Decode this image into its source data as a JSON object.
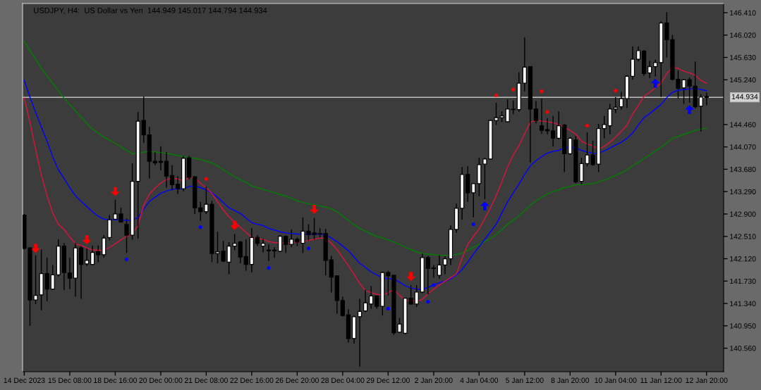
{
  "chart_data": {
    "type": "candlestick",
    "title": "USDJPY, H4:  US Dollar vs Yen  144.949 145.017 144.794 144.934",
    "categories": [
      "14 Dec 2023",
      null,
      null,
      null,
      null,
      null,
      null,
      null,
      "15 Dec 08:00",
      null,
      null,
      null,
      null,
      null,
      null,
      null,
      "18 Dec 16:00",
      null,
      null,
      null,
      null,
      null,
      null,
      null,
      "20 Dec 00:00",
      null,
      null,
      null,
      null,
      null,
      null,
      null,
      "21 Dec 08:00",
      null,
      null,
      null,
      null,
      null,
      null,
      null,
      "22 Dec 16:00",
      null,
      null,
      null,
      null,
      null,
      null,
      null,
      "26 Dec 20:00",
      null,
      null,
      null,
      null,
      null,
      null,
      null,
      "28 Dec 04:00",
      null,
      null,
      null,
      null,
      null,
      null,
      null,
      "29 Dec 12:00",
      null,
      null,
      null,
      null,
      null,
      null,
      null,
      "2 Jan 20:00",
      null,
      null,
      null,
      null,
      null,
      null,
      null,
      "4 Jan 04:00",
      null,
      null,
      null,
      null,
      null,
      null,
      null,
      "5 Jan 12:00",
      null,
      null,
      null,
      null,
      null,
      null,
      null,
      "8 Jan 20:00",
      null,
      null,
      null,
      null,
      null,
      null,
      null,
      "10 Jan 04:00",
      null,
      null,
      null,
      null,
      null,
      null,
      null,
      "11 Jan 12:00",
      null,
      null,
      null,
      null,
      null,
      null,
      null,
      "12 Jan 20:00"
    ],
    "ohlc": [
      [
        142.88,
        142.9,
        142.28,
        142.3
      ],
      [
        142.31,
        142.32,
        140.95,
        141.4
      ],
      [
        141.4,
        142.18,
        141.33,
        141.48
      ],
      [
        141.49,
        142.28,
        141.22,
        141.86
      ],
      [
        141.86,
        142.14,
        141.38,
        141.59
      ],
      [
        141.59,
        142.01,
        141.58,
        141.84
      ],
      [
        141.84,
        142.46,
        141.81,
        142.34
      ],
      [
        142.34,
        142.39,
        141.57,
        141.88
      ],
      [
        141.87,
        142.14,
        141.59,
        141.78
      ],
      [
        141.78,
        142.39,
        141.46,
        142.31
      ],
      [
        142.31,
        142.34,
        141.42,
        142.02
      ],
      [
        142.03,
        142.3,
        141.99,
        142.09
      ],
      [
        142.02,
        142.35,
        142.01,
        142.23
      ],
      [
        142.24,
        142.35,
        142.06,
        142.19
      ],
      [
        142.19,
        142.53,
        142.14,
        142.48
      ],
      [
        142.49,
        142.88,
        142.44,
        142.8
      ],
      [
        142.81,
        143.15,
        142.8,
        142.9
      ],
      [
        142.9,
        143.01,
        142.75,
        142.76
      ],
      [
        142.72,
        142.82,
        142.22,
        142.53
      ],
      [
        142.53,
        143.78,
        142.45,
        143.47
      ],
      [
        143.47,
        144.68,
        142.47,
        144.52
      ],
      [
        144.53,
        144.95,
        144.14,
        144.28
      ],
      [
        144.28,
        144.42,
        143.52,
        143.82
      ],
      [
        143.82,
        143.98,
        143.75,
        143.79
      ],
      [
        143.82,
        144.08,
        143.66,
        143.8
      ],
      [
        143.82,
        143.98,
        143.36,
        143.56
      ],
      [
        143.57,
        143.75,
        143.31,
        143.41
      ],
      [
        143.42,
        143.56,
        143.25,
        143.34
      ],
      [
        143.34,
        143.91,
        143.3,
        143.87
      ],
      [
        143.88,
        143.91,
        143.5,
        143.54
      ],
      [
        143.55,
        143.56,
        142.9,
        143.01
      ],
      [
        143.01,
        143.11,
        142.78,
        142.94
      ],
      [
        142.94,
        143.38,
        142.9,
        143.07
      ],
      [
        143.07,
        143.13,
        142.06,
        142.21
      ],
      [
        142.21,
        142.59,
        142.04,
        142.24
      ],
      [
        142.25,
        142.43,
        142.06,
        142.08
      ],
      [
        142.06,
        142.41,
        141.85,
        142.34
      ],
      [
        142.34,
        142.55,
        142.27,
        142.39
      ],
      [
        142.41,
        142.43,
        142.04,
        142.15
      ],
      [
        142.16,
        142.46,
        141.91,
        142.02
      ],
      [
        142.02,
        142.65,
        141.88,
        142.49
      ],
      [
        142.49,
        142.53,
        142.34,
        142.39
      ],
      [
        142.34,
        142.47,
        142.23,
        142.39
      ],
      [
        142.27,
        142.37,
        142.08,
        142.26
      ],
      [
        142.27,
        142.32,
        142.14,
        142.26
      ],
      [
        142.25,
        142.53,
        142.24,
        142.51
      ],
      [
        142.51,
        142.53,
        142.22,
        142.37
      ],
      [
        142.37,
        142.63,
        142.32,
        142.46
      ],
      [
        142.46,
        142.49,
        142.34,
        142.41
      ],
      [
        142.39,
        142.84,
        142.22,
        142.6
      ],
      [
        142.6,
        142.72,
        142.43,
        142.54
      ],
      [
        142.57,
        142.83,
        142.45,
        142.54
      ],
      [
        142.56,
        142.65,
        142.49,
        142.55
      ],
      [
        142.56,
        142.64,
        141.83,
        142.09
      ],
      [
        142.1,
        142.17,
        141.53,
        141.8
      ],
      [
        141.82,
        141.83,
        141.16,
        141.39
      ],
      [
        141.39,
        141.46,
        141.11,
        141.13
      ],
      [
        141.14,
        141.24,
        140.66,
        140.73
      ],
      [
        140.73,
        141.13,
        140.64,
        141.11
      ],
      [
        141.11,
        141.42,
        140.24,
        141.2
      ],
      [
        141.21,
        141.58,
        141.19,
        141.35
      ],
      [
        141.33,
        141.64,
        141.25,
        141.47
      ],
      [
        141.47,
        141.48,
        141.25,
        141.29
      ],
      [
        141.29,
        141.9,
        141.13,
        141.88
      ],
      [
        141.88,
        141.91,
        141.48,
        141.82
      ],
      [
        141.83,
        141.84,
        140.79,
        140.83
      ],
      [
        140.84,
        141.09,
        140.83,
        140.98
      ],
      [
        140.82,
        141.44,
        140.8,
        141.43
      ],
      [
        141.43,
        141.66,
        141.32,
        141.33
      ],
      [
        141.33,
        141.66,
        141.28,
        141.54
      ],
      [
        141.54,
        142.21,
        141.52,
        142.14
      ],
      [
        142.14,
        142.17,
        141.5,
        141.95
      ],
      [
        141.96,
        142.01,
        141.79,
        141.95
      ],
      [
        141.83,
        142.18,
        141.77,
        142.01
      ],
      [
        142.01,
        142.16,
        141.85,
        142.12
      ],
      [
        142.12,
        142.7,
        142.01,
        142.63
      ],
      [
        142.63,
        143.08,
        142.57,
        143.0
      ],
      [
        143.0,
        143.72,
        142.8,
        143.59
      ],
      [
        143.59,
        143.73,
        143.11,
        143.27
      ],
      [
        143.27,
        143.44,
        142.84,
        143.43
      ],
      [
        143.43,
        143.88,
        143.21,
        143.76
      ],
      [
        143.77,
        143.88,
        143.16,
        143.86
      ],
      [
        143.86,
        144.54,
        143.85,
        144.53
      ],
      [
        144.53,
        144.84,
        144.45,
        144.58
      ],
      [
        144.58,
        144.69,
        144.5,
        144.61
      ],
      [
        144.51,
        144.9,
        144.5,
        144.73
      ],
      [
        144.72,
        144.88,
        144.64,
        144.73
      ],
      [
        144.72,
        145.37,
        144.68,
        145.18
      ],
      [
        145.18,
        145.98,
        145.04,
        145.46
      ],
      [
        145.47,
        145.48,
        143.8,
        144.73
      ],
      [
        144.73,
        144.87,
        144.48,
        144.53
      ],
      [
        144.44,
        144.91,
        144.3,
        144.36
      ],
      [
        144.37,
        144.57,
        144.29,
        144.35
      ],
      [
        144.35,
        144.61,
        144.08,
        144.22
      ],
      [
        144.22,
        144.69,
        144.2,
        144.44
      ],
      [
        144.45,
        144.47,
        143.63,
        143.95
      ],
      [
        143.95,
        144.24,
        143.93,
        144.22
      ],
      [
        144.19,
        144.26,
        143.43,
        143.46
      ],
      [
        143.47,
        143.88,
        143.42,
        143.78
      ],
      [
        143.78,
        144.32,
        143.73,
        143.93
      ],
      [
        143.93,
        144.18,
        143.74,
        143.76
      ],
      [
        143.77,
        144.47,
        143.63,
        144.39
      ],
      [
        144.39,
        144.61,
        144.22,
        144.46
      ],
      [
        144.44,
        144.82,
        144.29,
        144.73
      ],
      [
        144.73,
        144.94,
        144.66,
        144.76
      ],
      [
        144.77,
        145.03,
        144.72,
        144.91
      ],
      [
        144.91,
        145.32,
        144.75,
        145.3
      ],
      [
        145.3,
        145.82,
        145.24,
        145.6
      ],
      [
        145.6,
        145.82,
        145.56,
        145.75
      ],
      [
        145.74,
        145.76,
        145.31,
        145.35
      ],
      [
        145.36,
        145.57,
        145.27,
        145.47
      ],
      [
        145.47,
        145.59,
        145.3,
        145.54
      ],
      [
        145.54,
        146.26,
        144.94,
        146.23
      ],
      [
        146.23,
        146.42,
        145.63,
        145.94
      ],
      [
        145.94,
        146.02,
        145.23,
        145.25
      ],
      [
        145.25,
        145.4,
        144.91,
        145.09
      ],
      [
        145.1,
        145.25,
        144.82,
        145.24
      ],
      [
        145.24,
        145.28,
        144.84,
        145.13
      ],
      [
        145.13,
        145.56,
        144.74,
        144.77
      ],
      [
        144.78,
        144.99,
        144.34,
        144.94
      ],
      [
        144.949,
        145.017,
        144.794,
        144.934
      ]
    ],
    "colors": [
      "#000000",
      "#000000",
      "#ffffff",
      "#ffffff",
      "#000000",
      "#ffffff",
      "#ffffff",
      "#000000",
      "#000000",
      "#ffffff",
      "#000000",
      "#ffffff",
      "#ffffff",
      "#000000",
      "#ffffff",
      "#ffffff",
      "#ffffff",
      "#000000",
      "#000000",
      "#ffffff",
      "#ffffff",
      "#000000",
      "#000000",
      "#000000",
      "#000000",
      "#000000",
      "#000000",
      "#000000",
      "#ffffff",
      "#000000",
      "#000000",
      "#000000",
      "#ffffff",
      "#000000",
      "#ffffff",
      "#000000",
      "#ffffff",
      "#ffffff",
      "#000000",
      "#000000",
      "#ffffff",
      "#000000",
      "#ffffff",
      "#000000",
      "#000000",
      "#ffffff",
      "#000000",
      "#ffffff",
      "#000000",
      "#ffffff",
      "#000000",
      "#000000",
      "#000000",
      "#000000",
      "#000000",
      "#000000",
      "#000000",
      "#000000",
      "#ffffff",
      "#ffffff",
      "#ffffff",
      "#ffffff",
      "#000000",
      "#ffffff",
      "#000000",
      "#000000",
      "#ffffff",
      "#ffffff",
      "#000000",
      "#ffffff",
      "#ffffff",
      "#000000",
      "#000000",
      "#ffffff",
      "#ffffff",
      "#ffffff",
      "#ffffff",
      "#ffffff",
      "#000000",
      "#ffffff",
      "#ffffff",
      "#ffffff",
      "#ffffff",
      "#ffffff",
      "#ffffff",
      "#ffffff",
      "#ffffff",
      "#ffffff",
      "#ffffff",
      "#000000",
      "#000000",
      "#000000",
      "#000000",
      "#000000",
      "#ffffff",
      "#000000",
      "#ffffff",
      "#000000",
      "#ffffff",
      "#ffffff",
      "#000000",
      "#ffffff",
      "#ffffff",
      "#ffffff",
      "#ffffff",
      "#ffffff",
      "#ffffff",
      "#ffffff",
      "#ffffff",
      "#000000",
      "#ffffff",
      "#ffffff",
      "#ffffff",
      "#000000",
      "#000000",
      "#000000",
      "#ffffff",
      "#000000",
      "#000000",
      "#ffffff",
      "#000000"
    ],
    "series": [
      {
        "type": "line",
        "color": "#008000",
        "values": [
          145.91,
          145.75,
          145.6,
          145.44,
          145.31,
          145.18,
          145.05,
          144.92,
          144.81,
          144.7,
          144.59,
          144.48,
          144.38,
          144.31,
          144.24,
          144.19,
          144.13,
          144.07,
          144.01,
          143.95,
          143.96,
          143.98,
          143.99,
          143.98,
          143.97,
          143.96,
          143.94,
          143.92,
          143.9,
          143.89,
          143.87,
          143.85,
          143.82,
          143.79,
          143.74,
          143.67,
          143.61,
          143.55,
          143.5,
          143.45,
          143.39,
          143.36,
          143.33,
          143.3,
          143.27,
          143.24,
          143.21,
          143.17,
          143.13,
          143.1,
          143.08,
          143.06,
          143.04,
          143.02,
          142.99,
          142.94,
          142.86,
          142.79,
          142.71,
          142.65,
          142.6,
          142.55,
          142.51,
          142.48,
          142.45,
          142.41,
          142.37,
          142.32,
          142.28,
          142.24,
          142.21,
          142.2,
          142.19,
          142.18,
          142.18,
          142.18,
          142.19,
          142.22,
          142.27,
          142.32,
          142.37,
          142.42,
          142.47,
          142.54,
          142.63,
          142.72,
          142.79,
          142.87,
          142.96,
          143.05,
          143.13,
          143.19,
          143.25,
          143.29,
          143.32,
          143.36,
          143.38,
          143.41,
          143.41,
          143.42,
          143.43,
          143.46,
          143.49,
          143.53,
          143.57,
          143.62,
          143.67,
          143.74,
          143.8,
          143.87,
          143.93,
          144.0,
          144.06,
          144.14,
          144.22,
          144.25,
          144.29,
          144.32,
          144.36,
          144.38,
          144.4
        ]
      },
      {
        "type": "line",
        "color": "#0000ff",
        "values": [
          145.23,
          144.94,
          144.67,
          144.42,
          144.17,
          143.9,
          143.67,
          143.52,
          143.36,
          143.22,
          143.12,
          143.03,
          142.94,
          142.86,
          142.81,
          142.8,
          142.8,
          142.8,
          142.79,
          142.79,
          142.84,
          142.98,
          143.12,
          143.19,
          143.26,
          143.3,
          143.33,
          143.34,
          143.34,
          143.38,
          143.39,
          143.36,
          143.32,
          143.27,
          143.19,
          143.1,
          143.01,
          142.96,
          142.91,
          142.83,
          142.75,
          142.72,
          142.7,
          142.65,
          142.62,
          142.59,
          142.57,
          142.56,
          142.55,
          142.55,
          142.55,
          142.55,
          142.55,
          142.54,
          142.48,
          142.42,
          142.34,
          142.26,
          142.15,
          142.04,
          141.97,
          141.89,
          141.84,
          141.79,
          141.77,
          141.77,
          141.71,
          141.65,
          141.61,
          141.59,
          141.58,
          141.62,
          141.66,
          141.7,
          141.73,
          141.77,
          141.84,
          141.93,
          142.06,
          142.2,
          142.33,
          142.46,
          142.59,
          142.72,
          142.92,
          143.11,
          143.27,
          143.42,
          143.59,
          143.74,
          143.83,
          143.9,
          143.96,
          143.99,
          144.01,
          144.06,
          144.06,
          144.06,
          144.01,
          143.98,
          143.96,
          143.96,
          144.0,
          144.05,
          144.1,
          144.15,
          144.22,
          144.31,
          144.45,
          144.58,
          144.65,
          144.73,
          144.81,
          144.93,
          145.02,
          145.06,
          145.07,
          145.08,
          145.09,
          145.07,
          145.05
        ]
      },
      {
        "type": "line",
        "color": "#dc143c",
        "values": [
          144.92,
          144.5,
          144.02,
          143.58,
          143.22,
          142.92,
          142.72,
          142.63,
          142.5,
          142.38,
          142.35,
          142.31,
          142.27,
          142.27,
          142.26,
          142.32,
          142.38,
          142.45,
          142.51,
          142.55,
          142.7,
          143.05,
          143.25,
          143.35,
          143.44,
          143.5,
          143.52,
          143.51,
          143.47,
          143.54,
          143.54,
          143.43,
          143.36,
          143.26,
          143.11,
          142.97,
          142.85,
          142.76,
          142.67,
          142.58,
          142.49,
          142.47,
          142.46,
          142.42,
          142.4,
          142.4,
          142.39,
          142.4,
          142.41,
          142.42,
          142.44,
          142.46,
          142.48,
          142.48,
          142.39,
          142.28,
          142.14,
          142.0,
          141.85,
          141.69,
          141.56,
          141.53,
          141.5,
          141.48,
          141.53,
          141.59,
          141.48,
          141.4,
          141.38,
          141.38,
          141.41,
          141.51,
          141.59,
          141.66,
          141.73,
          141.79,
          141.85,
          142.13,
          142.37,
          142.51,
          142.64,
          142.82,
          143.01,
          143.22,
          143.46,
          143.72,
          143.93,
          144.09,
          144.3,
          144.5,
          144.53,
          144.52,
          144.51,
          144.49,
          144.46,
          144.41,
          144.36,
          144.29,
          144.17,
          144.12,
          144.09,
          144.02,
          144.08,
          144.15,
          144.24,
          144.34,
          144.45,
          144.64,
          144.79,
          144.95,
          145.02,
          145.1,
          145.18,
          145.35,
          145.46,
          145.44,
          145.39,
          145.36,
          145.32,
          145.23,
          145.18
        ]
      },
      {
        "type": "scatter",
        "marker": "triangle_down",
        "color": "#ff0000",
        "values": [
          null,
          null,
          142.3,
          null,
          null,
          null,
          null,
          null,
          null,
          null,
          null,
          142.45,
          null,
          null,
          null,
          null,
          143.29,
          null,
          null,
          null,
          null,
          null,
          null,
          null,
          null,
          null,
          null,
          null,
          null,
          null,
          null,
          null,
          null,
          null,
          null,
          null,
          null,
          142.7,
          null,
          null,
          null,
          null,
          null,
          null,
          null,
          null,
          null,
          null,
          null,
          null,
          null,
          142.98,
          null,
          null,
          null,
          null,
          null,
          null,
          null,
          null,
          null,
          null,
          null,
          null,
          null,
          null,
          null,
          null,
          141.81,
          null,
          null,
          null,
          null,
          null,
          null,
          null,
          null,
          null,
          null,
          null,
          null,
          null,
          null,
          null,
          null,
          null,
          null,
          null,
          null,
          null,
          null,
          null,
          null,
          null,
          null,
          null,
          null,
          null,
          null,
          null,
          null,
          null,
          null,
          null,
          null,
          null,
          null,
          null,
          null,
          null,
          null,
          null,
          null,
          null,
          null,
          null,
          null,
          null,
          null,
          null,
          null
        ]
      },
      {
        "type": "scatter",
        "marker": "triangle",
        "color": "#0000ff",
        "values": [
          null,
          null,
          null,
          null,
          null,
          null,
          null,
          null,
          null,
          null,
          null,
          null,
          null,
          null,
          null,
          null,
          null,
          null,
          null,
          null,
          null,
          null,
          null,
          null,
          null,
          null,
          null,
          null,
          null,
          null,
          null,
          null,
          null,
          null,
          null,
          null,
          null,
          null,
          null,
          null,
          null,
          null,
          null,
          null,
          null,
          null,
          null,
          null,
          null,
          null,
          null,
          null,
          null,
          null,
          null,
          null,
          null,
          null,
          null,
          null,
          null,
          null,
          null,
          null,
          null,
          null,
          null,
          null,
          null,
          null,
          null,
          null,
          null,
          null,
          null,
          null,
          null,
          null,
          null,
          null,
          null,
          143.04,
          null,
          null,
          null,
          null,
          null,
          null,
          null,
          null,
          null,
          null,
          null,
          null,
          null,
          null,
          null,
          null,
          null,
          null,
          null,
          null,
          null,
          null,
          null,
          null,
          null,
          null,
          null,
          null,
          null,
          145.18,
          null,
          null,
          null,
          null,
          null,
          144.72,
          null,
          null,
          null
        ]
      },
      {
        "type": "scatter",
        "marker": "circle",
        "color": "#ff0000",
        "values": [
          null,
          null,
          null,
          null,
          null,
          null,
          null,
          null,
          null,
          null,
          null,
          null,
          null,
          null,
          null,
          null,
          null,
          null,
          null,
          null,
          null,
          null,
          null,
          null,
          null,
          null,
          null,
          null,
          null,
          null,
          null,
          null,
          143.51,
          null,
          null,
          null,
          null,
          null,
          null,
          null,
          null,
          null,
          null,
          null,
          null,
          null,
          null,
          null,
          null,
          null,
          null,
          null,
          null,
          null,
          null,
          null,
          null,
          null,
          null,
          null,
          null,
          null,
          null,
          null,
          null,
          null,
          null,
          null,
          null,
          null,
          null,
          null,
          null,
          null,
          null,
          null,
          null,
          null,
          null,
          null,
          null,
          null,
          null,
          144.97,
          null,
          null,
          145.07,
          null,
          null,
          null,
          null,
          145.04,
          144.68,
          null,
          null,
          null,
          null,
          null,
          null,
          144.44,
          null,
          null,
          null,
          null,
          145.05,
          null,
          null,
          null,
          null,
          null,
          null,
          null,
          null,
          null,
          null,
          null,
          null,
          null,
          null,
          null,
          null
        ]
      },
      {
        "type": "scatter",
        "marker": "circle",
        "color": "#0000ff",
        "values": [
          null,
          null,
          null,
          null,
          null,
          null,
          null,
          null,
          null,
          null,
          null,
          null,
          null,
          null,
          null,
          null,
          null,
          null,
          142.11,
          null,
          null,
          null,
          null,
          null,
          null,
          null,
          null,
          null,
          null,
          null,
          null,
          142.67,
          null,
          null,
          null,
          null,
          null,
          null,
          null,
          null,
          null,
          null,
          null,
          141.96,
          null,
          null,
          null,
          null,
          null,
          null,
          142.3,
          null,
          null,
          null,
          null,
          null,
          null,
          null,
          null,
          null,
          null,
          null,
          null,
          null,
          141.25,
          null,
          null,
          null,
          null,
          null,
          null,
          141.37,
          141.66,
          null,
          null,
          null,
          null,
          null,
          null,
          142.72,
          null,
          null,
          null,
          null,
          null,
          null,
          null,
          null,
          null,
          null,
          null,
          null,
          null,
          null,
          null,
          null,
          null,
          null,
          null,
          null,
          null,
          null,
          null,
          null,
          null,
          null,
          null,
          null,
          null,
          null,
          null,
          null,
          null,
          null,
          null,
          null,
          null,
          null,
          null,
          null,
          null
        ]
      }
    ],
    "ylim": [
      140.15,
      146.57
    ],
    "yticks": [
      {
        "value": 140.56,
        "label": "140.560"
      },
      {
        "value": 140.95,
        "label": "140.950"
      },
      {
        "value": 141.34,
        "label": "141.340"
      },
      {
        "value": 141.73,
        "label": "141.730"
      },
      {
        "value": 142.12,
        "label": "142.120"
      },
      {
        "value": 142.51,
        "label": "142.510"
      },
      {
        "value": 142.9,
        "label": "142.900"
      },
      {
        "value": 143.29,
        "label": "143.290"
      },
      {
        "value": 143.68,
        "label": "143.680"
      },
      {
        "value": 144.07,
        "label": "144.070"
      },
      {
        "value": 144.46,
        "label": "144.460"
      },
      {
        "value": 145.24,
        "label": "145.240"
      },
      {
        "value": 145.63,
        "label": "145.630"
      },
      {
        "value": 146.02,
        "label": "146.020"
      },
      {
        "value": 146.41,
        "label": "146.410"
      }
    ],
    "ref_lines": [
      {
        "axis": "y",
        "value": 144.934,
        "label": "144.934",
        "color": "#c0c0c0"
      }
    ]
  }
}
